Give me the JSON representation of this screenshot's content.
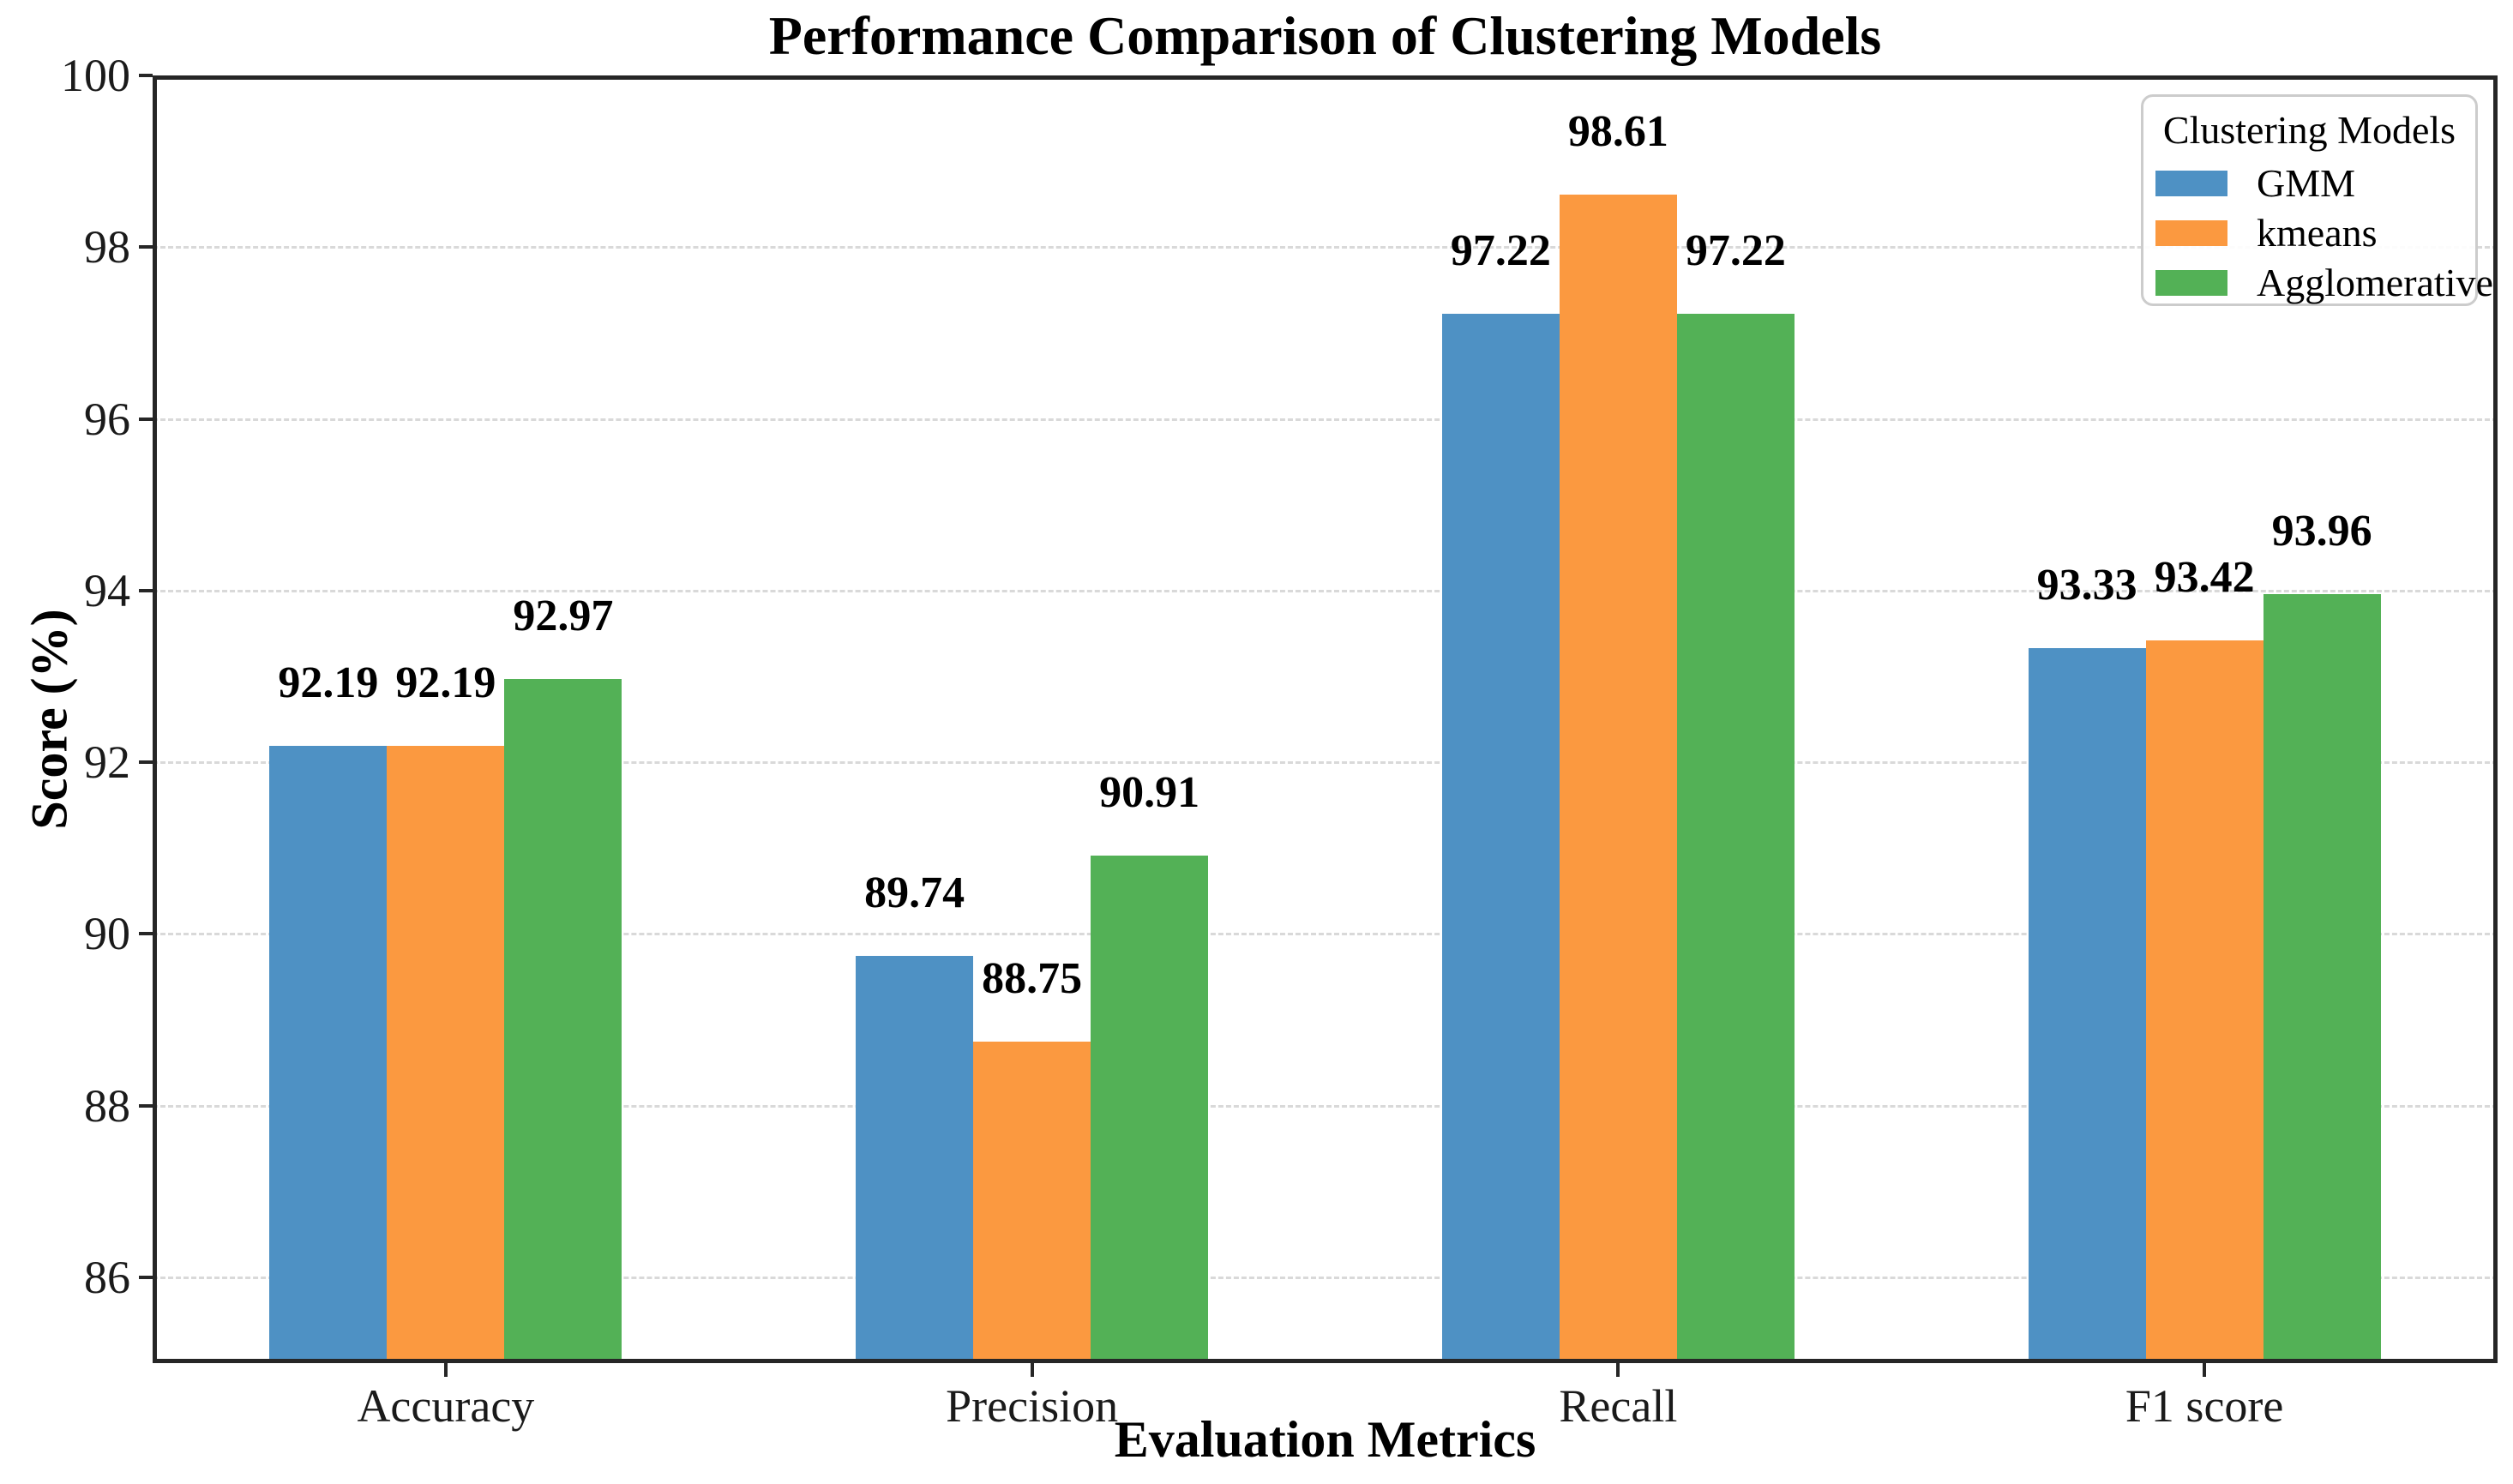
{
  "chart_data": {
    "type": "bar",
    "title": "Performance Comparison of Clustering Models",
    "xlabel": "Evaluation Metrics",
    "ylabel": "Score (%)",
    "categories": [
      "Accuracy",
      "Precision",
      "Recall",
      "F1 score"
    ],
    "series": [
      {
        "name": "GMM",
        "color": "#4E91C4",
        "values": [
          92.19,
          89.74,
          97.22,
          93.33
        ]
      },
      {
        "name": "kmeans",
        "color": "#FB9940",
        "values": [
          92.19,
          88.75,
          98.61,
          93.42
        ]
      },
      {
        "name": "Agglomerative",
        "color": "#53B156",
        "values": [
          92.97,
          90.91,
          97.22,
          93.96
        ]
      }
    ],
    "ylim": [
      85,
      100
    ],
    "yticks": [
      86,
      88,
      90,
      92,
      94,
      96,
      98,
      100
    ],
    "grid": "horizontal-dashed",
    "legend_position": "upper-right",
    "value_labels": true
  },
  "legend": {
    "title": "Clustering Models"
  }
}
